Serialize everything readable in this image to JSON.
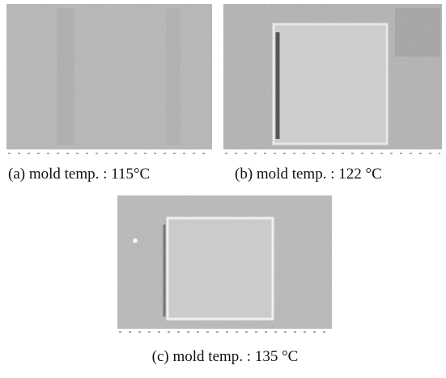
{
  "figure": {
    "panels": [
      {
        "caption": "(a) mold temp. : 115°C"
      },
      {
        "caption": "(b) mold temp. : 122 °C"
      },
      {
        "caption": "(c) mold temp. : 135 °C"
      }
    ]
  }
}
